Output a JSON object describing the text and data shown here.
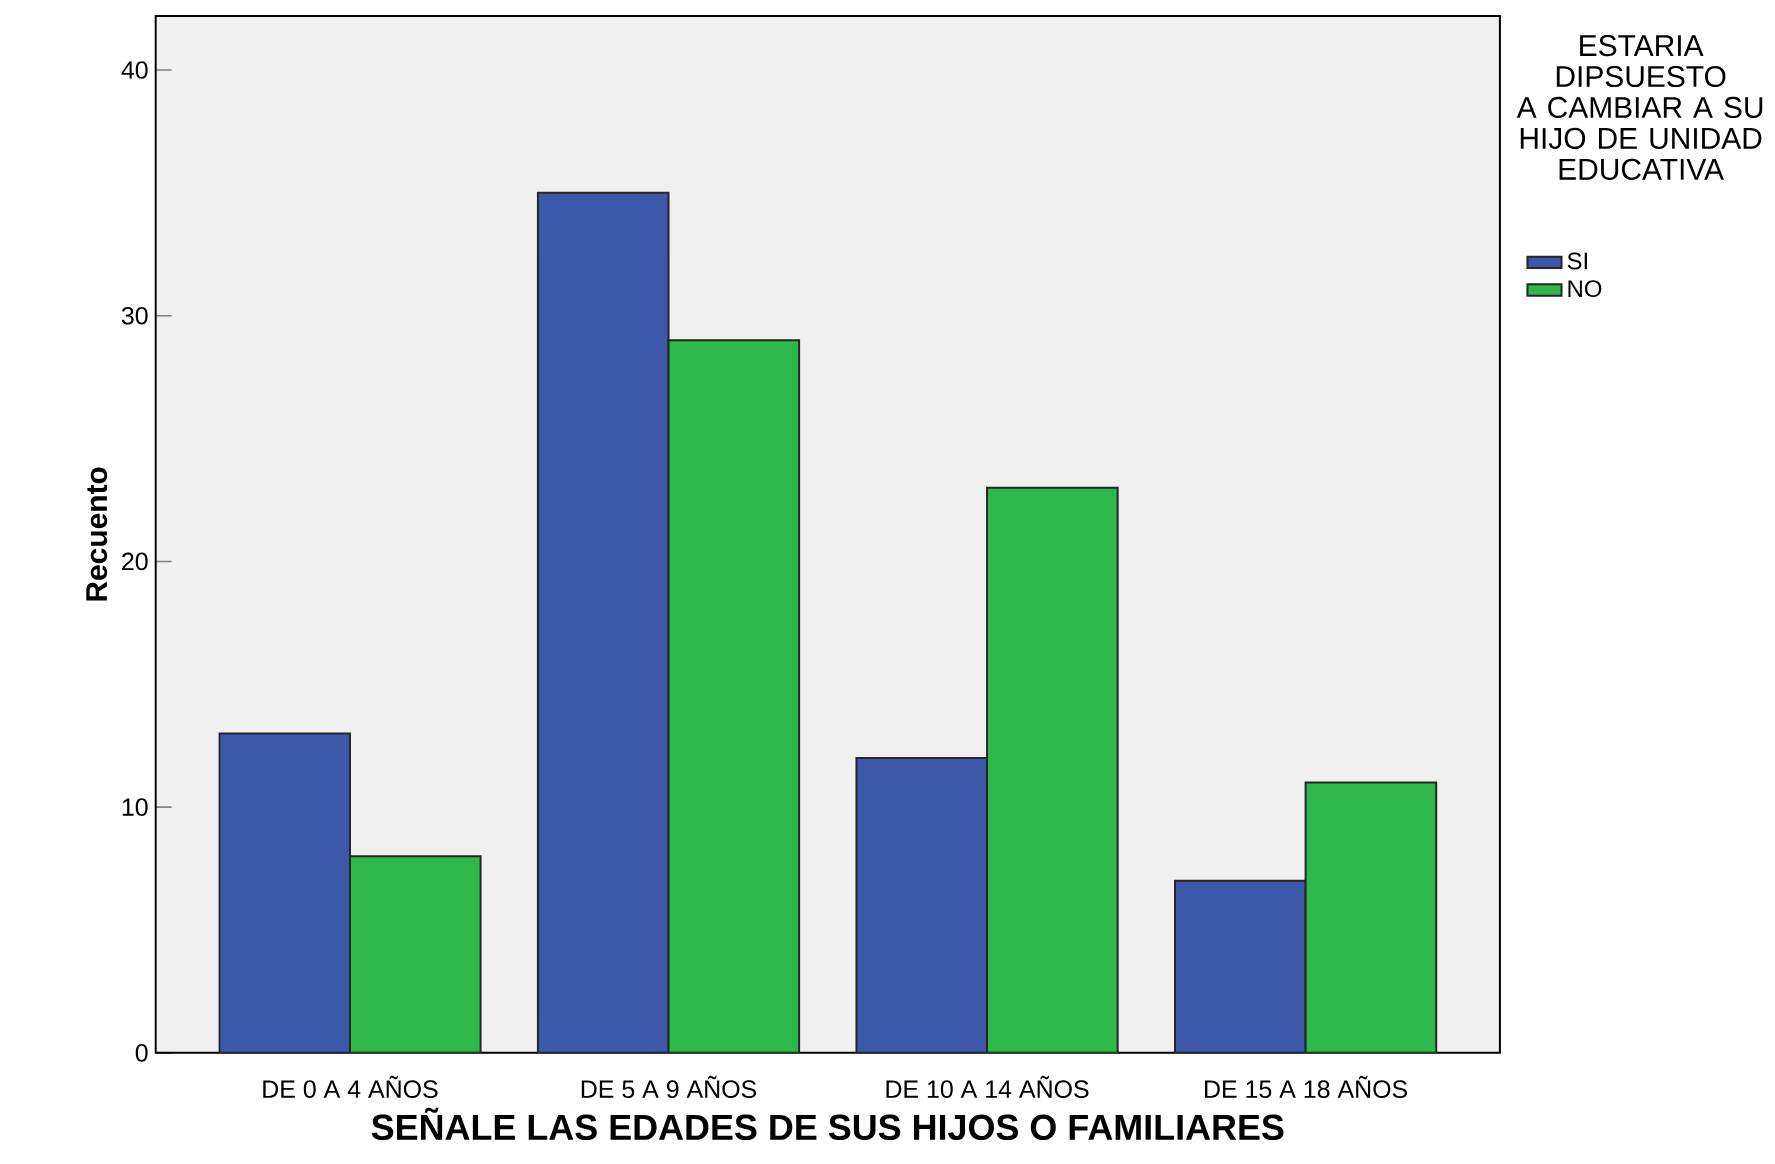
{
  "chart_data": {
    "type": "bar",
    "xlabel": "SEÑALE LAS EDADES DE SUS HIJOS O FAMILIARES",
    "ylabel": "Recuento",
    "legend_title": "ESTARIA DIPSUESTO A CAMBIAR A SU HIJO DE UNIDAD EDUCATIVA",
    "categories": [
      "DE 0 A 4 AÑOS",
      "DE 5 A 9 AÑOS",
      "DE 10 A 14 AÑOS",
      "DE 15 A 18 AÑOS"
    ],
    "series": [
      {
        "name": "SI",
        "color": "#3d58a8",
        "values": [
          13,
          35,
          12,
          7
        ]
      },
      {
        "name": "NO",
        "color": "#2eb84a",
        "values": [
          8,
          29,
          23,
          11
        ]
      }
    ],
    "ylim": [
      0,
      42.2
    ],
    "yticks": [
      0,
      10,
      20,
      30,
      40
    ],
    "legend": "right"
  }
}
